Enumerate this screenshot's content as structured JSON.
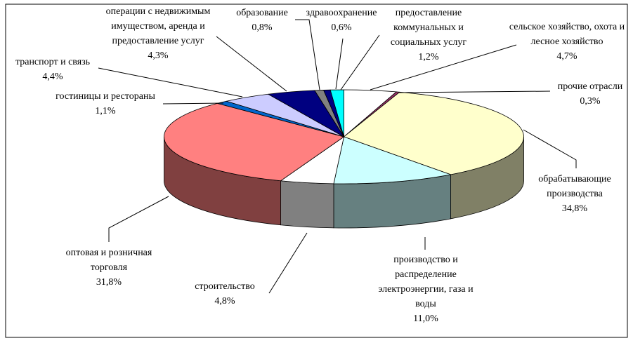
{
  "chart_data": {
    "type": "pie",
    "categories": [
      "сельское хозяйство, охота и лесное хозяйство",
      "прочие отрасли",
      "обрабатывающие производства",
      "производство и распределение электроэнергии, газа и воды",
      "строительство",
      "оптовая и розничная торговля",
      "гостиницы и рестораны",
      "транспорт и связь",
      "операции с недвижимым имуществом, аренда и предоставление услуг",
      "образование",
      "здравоохранение",
      "предоставление коммунальных и социальных услуг"
    ],
    "values": [
      4.7,
      0.3,
      34.8,
      11.0,
      4.8,
      31.8,
      1.1,
      4.4,
      4.3,
      0.8,
      0.6,
      1.2
    ],
    "value_labels": [
      "4,7%",
      "0,3%",
      "34,8%",
      "11,0%",
      "4,8%",
      "31,8%",
      "1,1%",
      "4,4%",
      "4,3%",
      "0,8%",
      "0,6%",
      "1,2%"
    ],
    "colors": [
      "#FFFFFF",
      "#993366",
      "#FFFFCC",
      "#CCFFFF",
      "#FFFFFF",
      "#FF8080",
      "#0066CC",
      "#CCCCFF",
      "#000080",
      "#808080",
      "#000080",
      "#00FFFF"
    ]
  }
}
